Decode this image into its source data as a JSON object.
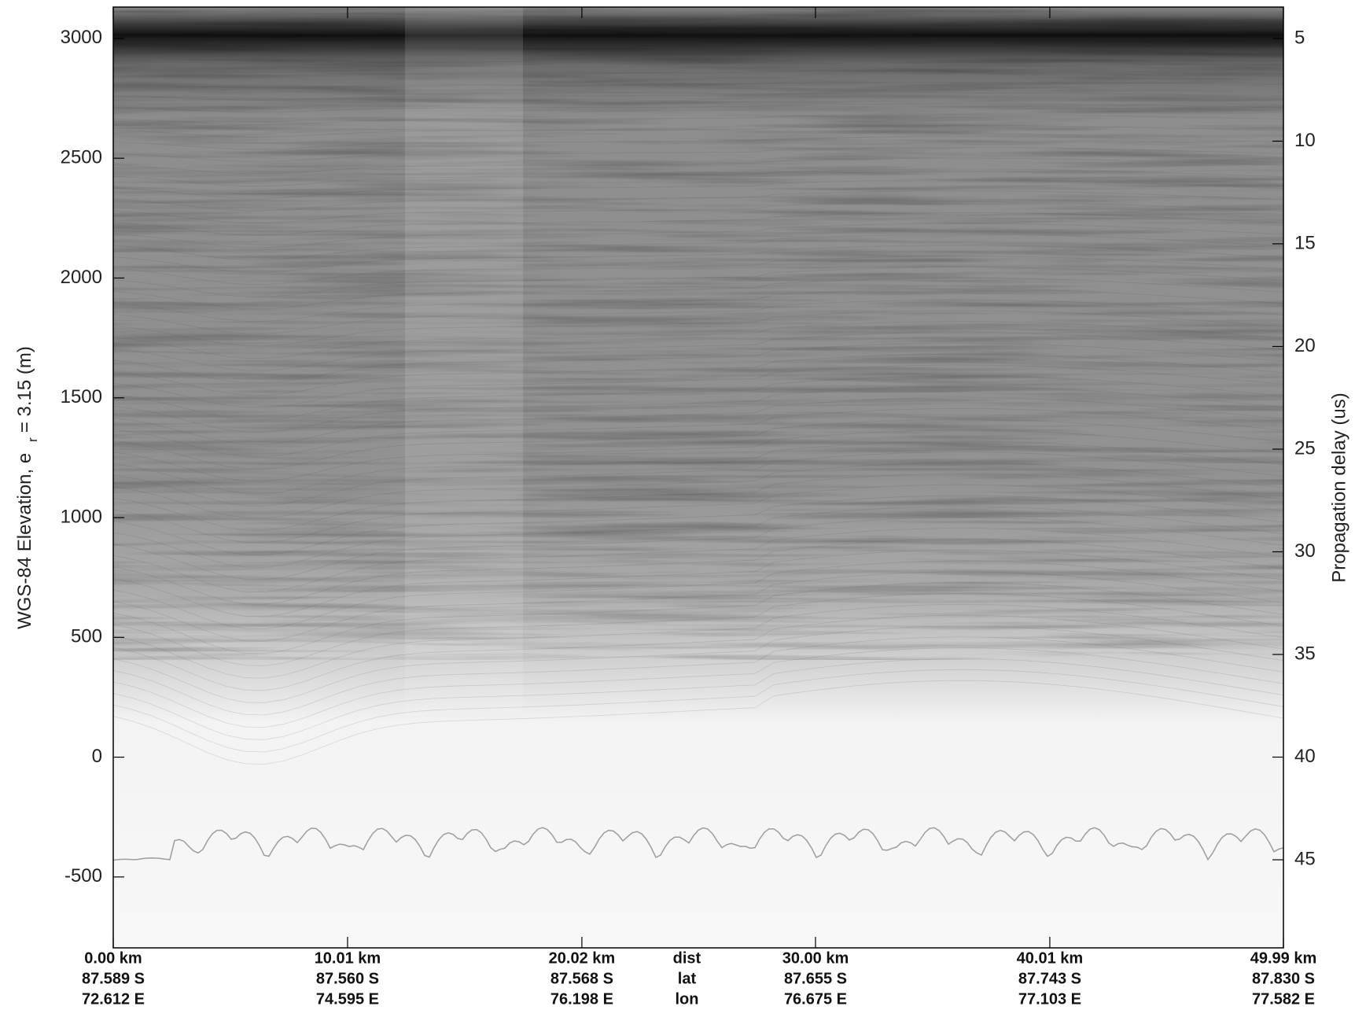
{
  "chart_data": {
    "type": "radargram",
    "y_label": "WGS-84 Elevation, e",
    "y_label_sub": "r",
    "y_label_tail": "= 3.15 (m)",
    "y2_label": "Propagation delay (us)",
    "ylim": [
      -796,
      3131
    ],
    "yticks": [
      -500,
      0,
      500,
      1000,
      1500,
      2000,
      2500,
      3000
    ],
    "y2lim": [
      49.29,
      3.47
    ],
    "y2ticks": [
      5,
      10,
      15,
      20,
      25,
      30,
      35,
      40,
      45
    ],
    "xlim": [
      0,
      49.99
    ],
    "xticks": [
      {
        "value": 0,
        "label": "0.00 km"
      },
      {
        "value": 10.01,
        "label": "10.01 km"
      },
      {
        "value": 20.02,
        "label": "20.02 km"
      },
      {
        "value": 30.0,
        "label": "30.00 km"
      },
      {
        "value": 40.01,
        "label": "40.01 km"
      },
      {
        "value": 49.99,
        "label": "49.99 km"
      }
    ],
    "lat": [
      "87.589 S",
      "87.560 S",
      "87.568 S",
      "87.655 S",
      "87.743 S",
      "87.830 S"
    ],
    "lon": [
      "72.612 E",
      "74.595 E",
      "76.198 E",
      "76.675 E",
      "77.103 E",
      "77.582 E"
    ],
    "row_names": [
      "dist",
      "lat",
      "lon"
    ]
  }
}
